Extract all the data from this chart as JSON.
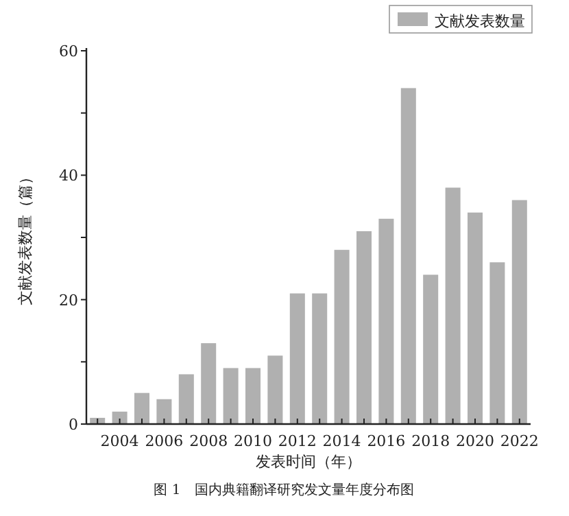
{
  "chart_data": {
    "type": "bar",
    "categories": [
      null,
      "2004",
      null,
      "2006",
      null,
      "2008",
      null,
      "2010",
      null,
      "2012",
      null,
      "2014",
      null,
      "2016",
      null,
      "2018",
      null,
      "2020",
      null,
      "2022"
    ],
    "series": [
      {
        "name": "文献发表数量",
        "color": "#b0b0b0",
        "values": [
          1,
          2,
          5,
          4,
          8,
          13,
          9,
          9,
          11,
          21,
          21,
          28,
          31,
          33,
          54,
          24,
          38,
          34,
          26,
          36
        ]
      }
    ],
    "ylim": [
      0,
      60
    ],
    "yticks": [
      0,
      {
        "value": 10,
        "label": null
      },
      20,
      {
        "value": 30,
        "label": null
      },
      40,
      {
        "value": 50,
        "label": null
      },
      60
    ],
    "xlabel": "发表时间（年）",
    "ylabel": "文献发表数量（篇）",
    "legend": "top right",
    "annotations": [
      "图 1　国内典籍翻译研究发文量年度分布图"
    ]
  }
}
